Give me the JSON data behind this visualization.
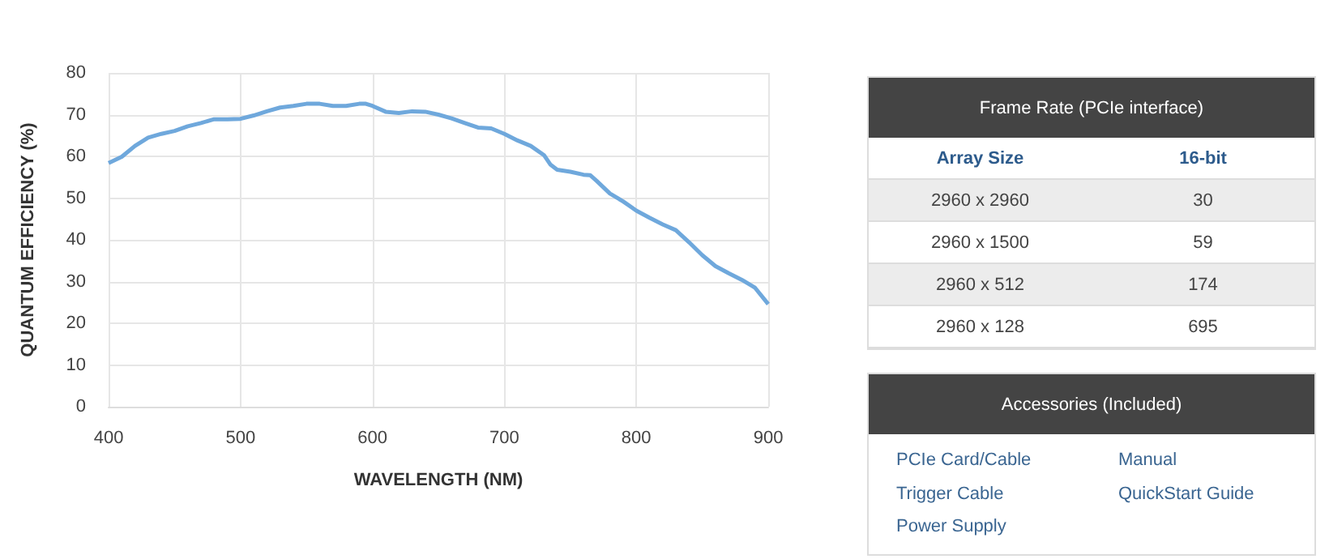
{
  "chart_data": [
    {
      "type": "line",
      "xlabel": "WAVELENGTH (NM)",
      "ylabel": "QUANTUM EFFICIENCY (%)",
      "xlim": [
        400,
        900
      ],
      "xticks": [
        400,
        500,
        600,
        700,
        800,
        900
      ],
      "ylim": [
        0,
        80
      ],
      "yticks": [
        0,
        10,
        20,
        30,
        40,
        50,
        60,
        70,
        80
      ],
      "grid": true,
      "marker": "none",
      "series": [
        {
          "color": "#6fa8dc",
          "x": [
            400,
            410,
            420,
            430,
            440,
            450,
            460,
            470,
            480,
            490,
            500,
            510,
            520,
            530,
            540,
            550,
            560,
            570,
            580,
            590,
            595,
            600,
            610,
            620,
            630,
            640,
            650,
            660,
            670,
            680,
            690,
            700,
            710,
            720,
            730,
            735,
            740,
            750,
            760,
            765,
            770,
            780,
            790,
            800,
            810,
            820,
            830,
            840,
            850,
            860,
            870,
            880,
            890,
            900
          ],
          "values": [
            58.4,
            59.9,
            62.5,
            64.5,
            65.4,
            66.1,
            67.2,
            68,
            68.9,
            68.9,
            69,
            69.8,
            70.8,
            71.7,
            72.1,
            72.6,
            72.6,
            72.1,
            72.1,
            72.6,
            72.6,
            72.1,
            70.7,
            70.4,
            70.8,
            70.7,
            70,
            69.1,
            68,
            66.9,
            66.7,
            65.4,
            63.8,
            62.5,
            60.3,
            58,
            56.8,
            56.3,
            55.6,
            55.5,
            54.1,
            51.1,
            49.2,
            47,
            45.3,
            43.7,
            42.3,
            39.4,
            36.3,
            33.7,
            32,
            30.4,
            28.5,
            24.6
          ]
        }
      ]
    },
    {
      "type": "other",
      "title": "Frame Rate (PCIe interface)",
      "xlabel": "Array Size",
      "categories": [
        "2960 x 2960",
        "2960 x 1500",
        "2960 x 512",
        "2960 x 128"
      ],
      "data_labels": true,
      "series": [
        {
          "name": "16-bit",
          "values": [
            30,
            59,
            174,
            695
          ]
        }
      ]
    },
    {
      "type": "other",
      "title": "Accessories (Included)",
      "annotations": [
        "PCIe Card/Cable",
        "Trigger Cable",
        "Power Supply",
        "Manual",
        "QuickStart Guide"
      ]
    }
  ]
}
